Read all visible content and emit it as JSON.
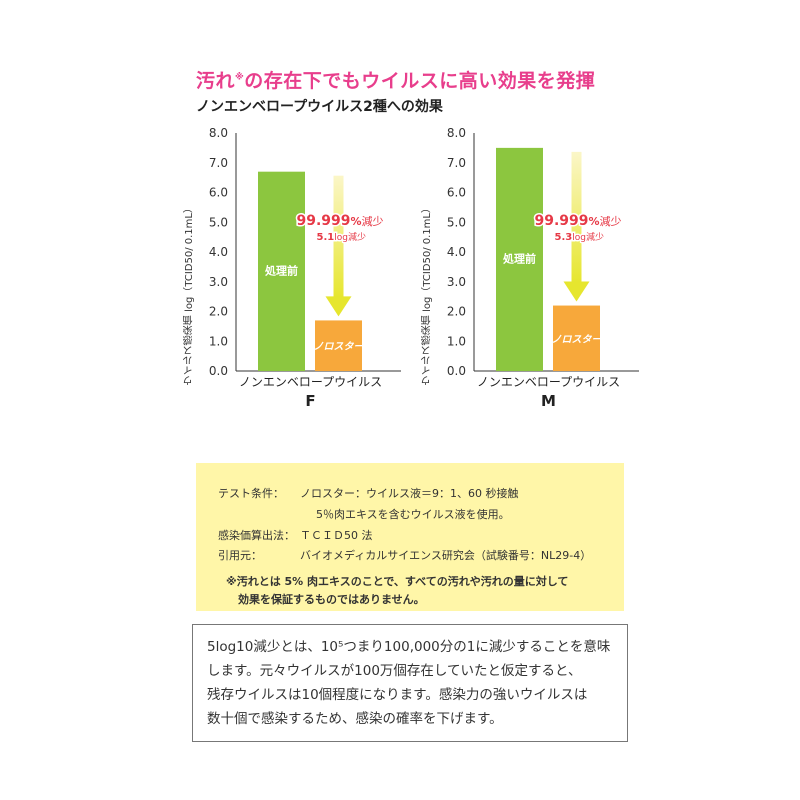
{
  "header": {
    "headline_main": "汚れ",
    "headline_mark": "※",
    "headline_rest": "の存在下でもウイルスに高い効果を発揮",
    "subtitle": "ノンエンベロープウイルス2種への効果"
  },
  "colors": {
    "before": "#8cc63f",
    "after": "#f7a83b",
    "arrow": "#e6e62e",
    "accent": "#e63946",
    "headline": "#e83e8c"
  },
  "chart_data": [
    {
      "type": "bar",
      "ylabel": "ウイルス感染価 log（TCID50/ 0.1mL）",
      "ylim": [
        0,
        8
      ],
      "yticks": [
        "0.0",
        "1.0",
        "2.0",
        "3.0",
        "4.0",
        "5.0",
        "6.0",
        "7.0",
        "8.0"
      ],
      "xlabel": "ノンエンベロープウイルス",
      "category": "F",
      "series": [
        {
          "name": "処理前",
          "values": [
            6.7
          ]
        },
        {
          "name": "ノロスター",
          "values": [
            1.7
          ]
        }
      ],
      "reduction_percent": "99.999%減少",
      "reduction_log": "5.1log減少",
      "reduction_log_value": "5.1",
      "reduction_log_word": "log減少"
    },
    {
      "type": "bar",
      "ylabel": "ウイルス感染価 log（TCID50/ 0.1mL）",
      "ylim": [
        0,
        8
      ],
      "yticks": [
        "0.0",
        "1.0",
        "2.0",
        "3.0",
        "4.0",
        "5.0",
        "6.0",
        "7.0",
        "8.0"
      ],
      "xlabel": "ノンエンベロープウイルス",
      "category": "M",
      "series": [
        {
          "name": "処理前",
          "values": [
            7.5
          ]
        },
        {
          "name": "ノロスター",
          "values": [
            2.2
          ]
        }
      ],
      "reduction_percent": "99.999%減少",
      "reduction_log": "5.3log減少",
      "reduction_log_value": "5.3",
      "reduction_log_word": "log減少"
    }
  ],
  "conditions": {
    "test_label": "テスト条件：",
    "test_line1": "ノロスター：ウイルス液＝9：1、60 秒接触",
    "test_line2": "5％肉エキスを含むウイルス液を使用。",
    "method_label": "感染価算出法：",
    "method_value": "ＴＣＩＤ50 法",
    "source_label": "引用元：",
    "source_value": "バイオメディカルサイエンス研究会（試験番号：NL29-4）",
    "footnote1": "※汚れとは 5% 肉エキスのことで、すべての汚れや汚れの量に対して",
    "footnote2": "効果を保証するものではありません。"
  },
  "explanation": {
    "line1": "5log10減少とは、10⁵つまり100,000分の1に減少することを意味",
    "line2": "します。元々ウイルスが100万個存在していたと仮定すると、",
    "line3": "残存ウイルスは10個程度になります。感染力の強いウイルスは",
    "line4": "数十個で感染するため、感染の確率を下げます。"
  }
}
